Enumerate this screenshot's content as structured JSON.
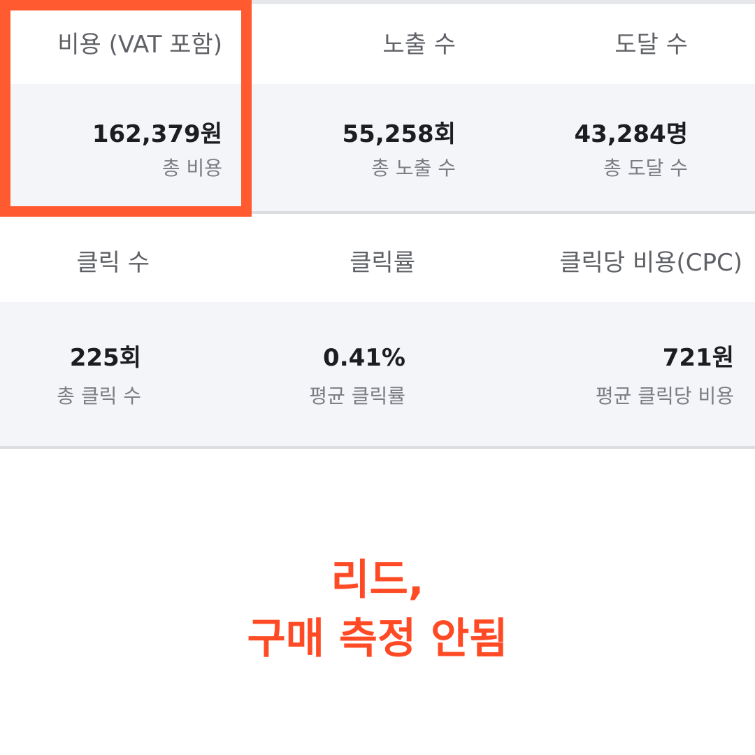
{
  "row1": {
    "headers": [
      "비용 (VAT 포함)",
      "노출 수",
      "도달 수"
    ],
    "values": [
      "162,379원",
      "55,258회",
      "43,284명"
    ],
    "subs": [
      "총 비용",
      "총 노출 수",
      "총 도달 수"
    ]
  },
  "row2": {
    "headers": [
      "클릭 수",
      "클릭률",
      "클릭당 비용(CPC)"
    ],
    "values": [
      "225회",
      "0.41%",
      "721원"
    ],
    "subs": [
      "총 클릭 수",
      "평균 클릭률",
      "평균 클릭당 비용"
    ]
  },
  "caption": {
    "line1": "리드,",
    "line2": "구매 측정 안됨"
  },
  "colors": {
    "accent": "#ff5a30",
    "caption": "#ff4b25"
  }
}
